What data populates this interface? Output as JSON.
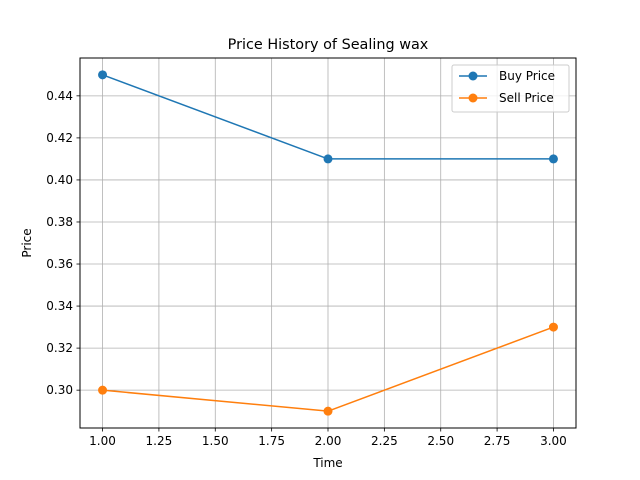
{
  "chart_data": {
    "type": "line",
    "title": "Price History of Sealing wax",
    "xlabel": "Time",
    "ylabel": "Price",
    "x": [
      1,
      2,
      3
    ],
    "series": [
      {
        "name": "Buy Price",
        "values": [
          0.45,
          0.41,
          0.41
        ],
        "color": "#1f77b4"
      },
      {
        "name": "Sell Price",
        "values": [
          0.3,
          0.29,
          0.33
        ],
        "color": "#ff7f0e"
      }
    ],
    "xlim": [
      0.9,
      3.1
    ],
    "ylim": [
      0.282,
      0.458
    ],
    "xticks": [
      1.0,
      1.25,
      1.5,
      1.75,
      2.0,
      2.25,
      2.5,
      2.75,
      3.0
    ],
    "xtick_labels": [
      "1.00",
      "1.25",
      "1.50",
      "1.75",
      "2.00",
      "2.25",
      "2.50",
      "2.75",
      "3.00"
    ],
    "yticks": [
      0.3,
      0.32,
      0.34,
      0.36,
      0.38,
      0.4,
      0.42,
      0.44
    ],
    "ytick_labels": [
      "0.30",
      "0.32",
      "0.34",
      "0.36",
      "0.38",
      "0.40",
      "0.42",
      "0.44"
    ],
    "grid": true,
    "legend_position": "top-right"
  }
}
